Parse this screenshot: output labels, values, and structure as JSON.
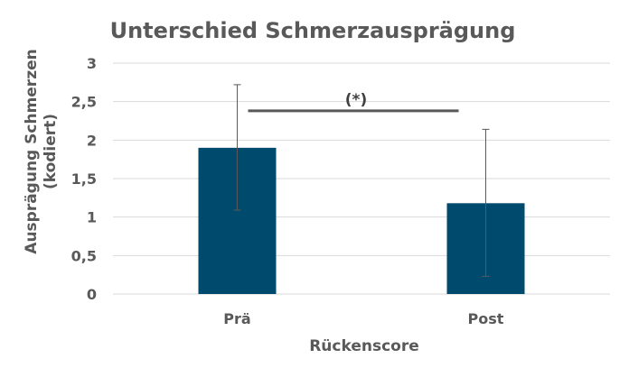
{
  "chart_data": {
    "type": "bar",
    "title": "Unterschied Schmerzausprägung",
    "xlabel": "Rückenscore",
    "ylabel_lines": [
      "Ausprägung Schmerzen",
      "(kodiert)"
    ],
    "categories": [
      "Prä",
      "Post"
    ],
    "values": [
      1.9,
      1.18
    ],
    "error_low": [
      1.09,
      0.23
    ],
    "error_high": [
      2.72,
      2.14
    ],
    "ylim": [
      0,
      3
    ],
    "yticks": [
      0,
      0.5,
      1,
      1.5,
      2,
      2.5,
      3
    ],
    "ytick_labels": [
      "0",
      "0,5",
      "1",
      "1,5",
      "2",
      "2,5",
      "3"
    ],
    "grid": true,
    "legend": "none",
    "significance": {
      "label": "(*)",
      "between": [
        "Prä",
        "Post"
      ],
      "level": 2.38
    },
    "colors": {
      "bar": "#004a6e",
      "grid": "#d9d9d9",
      "text": "#595959",
      "error": "#595959",
      "bracket": "#595959"
    }
  }
}
